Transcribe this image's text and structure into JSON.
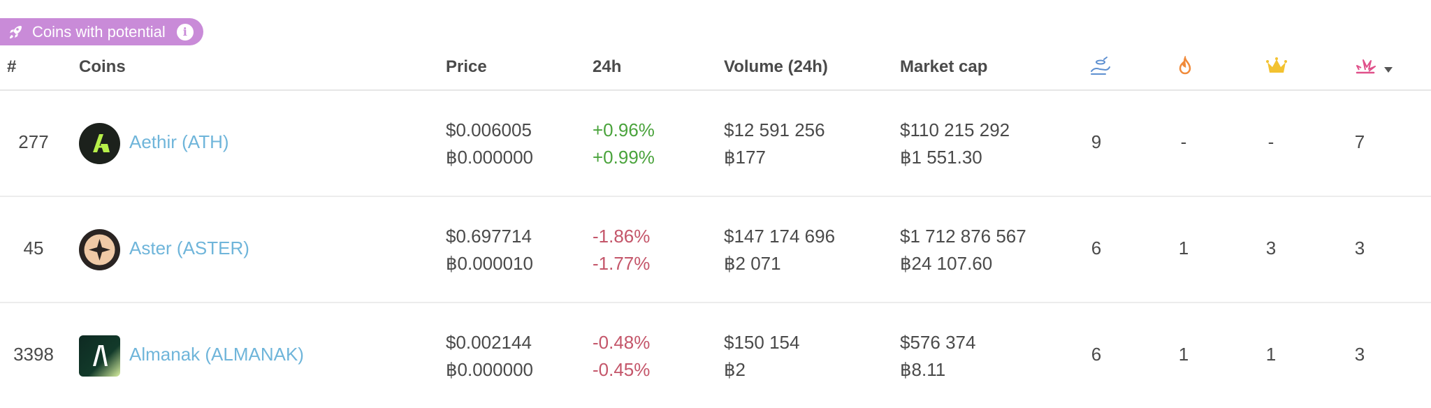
{
  "badge": {
    "label": "Coins with potential",
    "info_glyph": "i",
    "color": "#c98bd8"
  },
  "header": {
    "rank": "#",
    "coins": "Coins",
    "price": "Price",
    "change": "24h",
    "volume": "Volume (24h)",
    "market_cap": "Market cap",
    "icons": [
      "hand-coin-icon",
      "fire-icon",
      "crown-icon",
      "explosion-icon"
    ]
  },
  "rows": [
    {
      "rank": "277",
      "name": "Aethir (ATH)",
      "price_usd": "$0.006005",
      "price_btc": "฿0.000000",
      "change_usd": "+0.96%",
      "change_btc": "+0.99%",
      "direction": "up",
      "volume_usd": "$12 591 256",
      "volume_btc": "฿177",
      "mcap_usd": "$110 215 292",
      "mcap_btc": "฿1 551.30",
      "s1": "9",
      "s2": "-",
      "s3": "-",
      "s4": "7"
    },
    {
      "rank": "45",
      "name": "Aster (ASTER)",
      "price_usd": "$0.697714",
      "price_btc": "฿0.000010",
      "change_usd": "-1.86%",
      "change_btc": "-1.77%",
      "direction": "down",
      "volume_usd": "$147 174 696",
      "volume_btc": "฿2 071",
      "mcap_usd": "$1 712 876 567",
      "mcap_btc": "฿24 107.60",
      "s1": "6",
      "s2": "1",
      "s3": "3",
      "s4": "3"
    },
    {
      "rank": "3398",
      "name": "Almanak (ALMANAK)",
      "price_usd": "$0.002144",
      "price_btc": "฿0.000000",
      "change_usd": "-0.48%",
      "change_btc": "-0.45%",
      "direction": "down",
      "volume_usd": "$150 154",
      "volume_btc": "฿2",
      "mcap_usd": "$576 374",
      "mcap_btc": "฿8.11",
      "s1": "6",
      "s2": "1",
      "s3": "1",
      "s4": "3"
    }
  ],
  "colors": {
    "positive": "#4aa33c",
    "negative": "#c4566a",
    "link": "#6fb5da"
  }
}
